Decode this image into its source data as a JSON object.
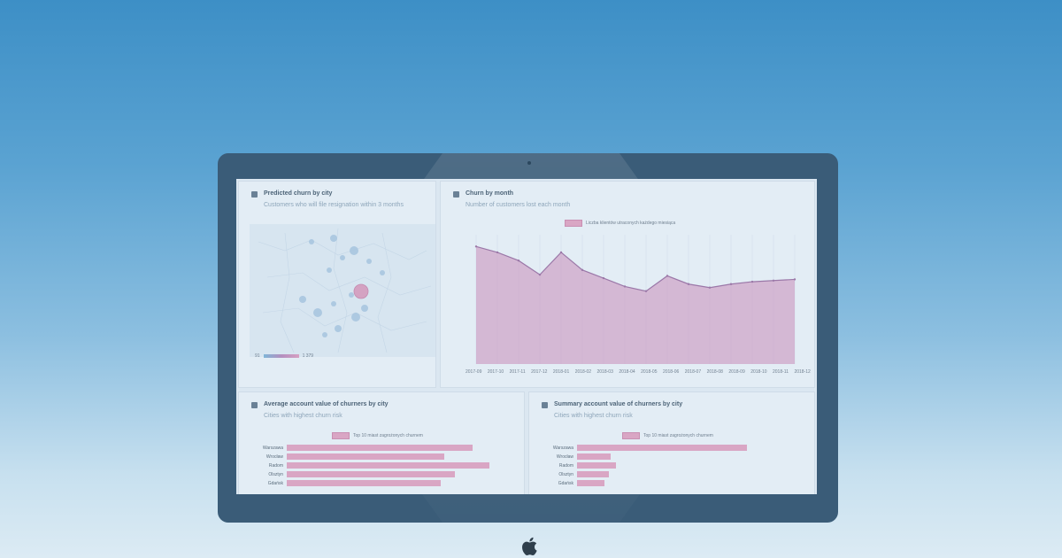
{
  "panels": {
    "map": {
      "title": "Predicted churn by city",
      "subtitle": "Customers who will file resignation within 3 months",
      "scale_min": "91",
      "scale_max": "1 379"
    },
    "line": {
      "title": "Churn by month",
      "subtitle": "Number of customers lost each month",
      "legend": "Liczba klientów utraconych każdego miesiąca"
    },
    "avg": {
      "title": "Average account value of churners by city",
      "subtitle": "Cities with highest churn risk",
      "legend": "Top 10 miast zagrożonych churnem"
    },
    "sum": {
      "title": "Summary account value of churners by city",
      "subtitle": "Cities with highest churn risk",
      "legend": "Top 10 miast zagrożonych churnem"
    }
  },
  "chart_data": [
    {
      "type": "area",
      "x": [
        "2017-09",
        "2017-10",
        "2017-11",
        "2017-12",
        "2018-01",
        "2018-02",
        "2018-03",
        "2018-04",
        "2018-05",
        "2018-06",
        "2018-07",
        "2018-08",
        "2018-09",
        "2018-10",
        "2018-11",
        "2018-12"
      ],
      "series": [
        {
          "name": "Liczba klientów utraconych każdego miesiąca",
          "values": [
            100,
            95,
            88,
            76,
            95,
            80,
            73,
            66,
            62,
            75,
            68,
            65,
            68,
            70,
            71,
            72
          ]
        }
      ],
      "ylim": [
        0,
        110
      ]
    },
    {
      "type": "bar",
      "orientation": "horizontal",
      "categories": [
        "Warszawa",
        "Wrocław",
        "Radom",
        "Olsztyn",
        "Gdańsk"
      ],
      "series": [
        {
          "name": "Top 10 miast zagrożonych churnem",
          "values": [
            92,
            78,
            100,
            83,
            76
          ]
        }
      ],
      "xlim": [
        0,
        105
      ]
    },
    {
      "type": "bar",
      "orientation": "horizontal",
      "categories": [
        "Warszawa",
        "Wrocław",
        "Radom",
        "Olsztyn",
        "Gdańsk"
      ],
      "series": [
        {
          "name": "Top 10 miast zagrożonych churnem",
          "values": [
            100,
            20,
            23,
            19,
            16
          ]
        }
      ],
      "xlim": [
        0,
        125
      ]
    }
  ]
}
